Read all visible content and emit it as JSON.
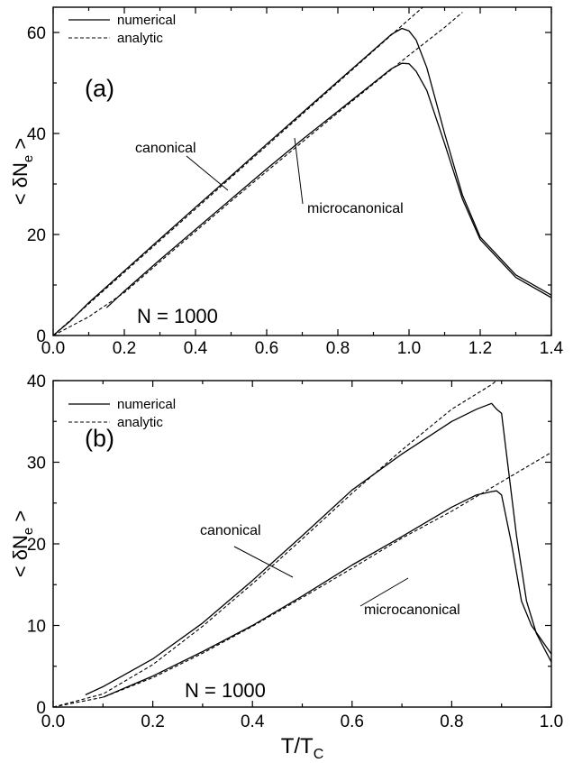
{
  "chart_data": [
    {
      "type": "line",
      "panel_label": "(a)",
      "annotation": "N = 1000",
      "ylabel": "< δN_e >",
      "xlim": [
        0.0,
        1.4
      ],
      "ylim": [
        0,
        65
      ],
      "xticks": [
        "0.0",
        "0.2",
        "0.4",
        "0.6",
        "0.8",
        "1.0",
        "1.2",
        "1.4"
      ],
      "yticks": [
        "0",
        "20",
        "40",
        "60"
      ],
      "legend": {
        "position": "top-left",
        "entries": [
          "numerical",
          "analytic"
        ]
      },
      "labels": [
        "canonical",
        "microcanonical"
      ],
      "series": [
        {
          "name": "canonical (numerical)",
          "style": "solid",
          "x": [
            0.0,
            0.05,
            0.1,
            0.2,
            0.3,
            0.4,
            0.5,
            0.6,
            0.7,
            0.8,
            0.9,
            0.95,
            0.98,
            1.0,
            1.02,
            1.05,
            1.1,
            1.15,
            1.2,
            1.3,
            1.4
          ],
          "y": [
            0,
            3,
            6.5,
            12.8,
            19.1,
            25.4,
            31.6,
            37.9,
            44.1,
            50.3,
            56.5,
            59.6,
            60.8,
            60.3,
            58.5,
            53,
            40,
            27.8,
            19.5,
            12,
            8
          ]
        },
        {
          "name": "canonical (analytic)",
          "style": "dashed",
          "x": [
            0.0,
            1.0,
            1.12
          ],
          "y": [
            0,
            62.6,
            70
          ]
        },
        {
          "name": "microcanonical (numerical)",
          "style": "solid",
          "x": [
            0.15,
            0.2,
            0.3,
            0.4,
            0.5,
            0.6,
            0.7,
            0.8,
            0.9,
            0.95,
            0.98,
            1.0,
            1.02,
            1.05,
            1.1,
            1.15,
            1.2,
            1.3,
            1.4
          ],
          "y": [
            5.5,
            8.8,
            15,
            21,
            27,
            33,
            38.8,
            44.4,
            50,
            52.8,
            53.9,
            53.8,
            52.3,
            48.5,
            38,
            27,
            19,
            11.5,
            7.5
          ]
        },
        {
          "name": "microcanonical (analytic)",
          "style": "dashed",
          "x": [
            0.0,
            0.1,
            0.2,
            0.3,
            0.4,
            0.5,
            0.6,
            0.7,
            0.8,
            0.9,
            1.0,
            1.1,
            1.15
          ],
          "y": [
            0,
            3.7,
            8.5,
            14.6,
            20.6,
            26.6,
            32.5,
            38.3,
            44.1,
            49.8,
            55.5,
            61,
            64
          ]
        }
      ]
    },
    {
      "type": "line",
      "panel_label": "(b)",
      "annotation": "N = 1000",
      "ylabel": "< δN_e >",
      "xlabel": "T/T_C",
      "xlim": [
        0.0,
        1.0
      ],
      "ylim": [
        0,
        40
      ],
      "xticks": [
        "0.0",
        "0.2",
        "0.4",
        "0.6",
        "0.8",
        "1.0"
      ],
      "yticks": [
        "0",
        "10",
        "20",
        "30",
        "40"
      ],
      "legend": {
        "position": "top-left",
        "entries": [
          "numerical",
          "analytic"
        ]
      },
      "labels": [
        "canonical",
        "microcanonical"
      ],
      "series": [
        {
          "name": "canonical (numerical)",
          "style": "solid",
          "x": [
            0.065,
            0.1,
            0.2,
            0.3,
            0.4,
            0.5,
            0.6,
            0.7,
            0.8,
            0.85,
            0.88,
            0.89,
            0.9,
            0.91,
            0.93,
            0.95,
            0.97,
            1.0
          ],
          "y": [
            1.5,
            2.5,
            5.9,
            10.3,
            15.5,
            21,
            26.6,
            31,
            35,
            36.5,
            37.2,
            36.5,
            36,
            31,
            21,
            13,
            9,
            5.5
          ]
        },
        {
          "name": "canonical (analytic)",
          "style": "dashed",
          "x": [
            0.0,
            0.1,
            0.2,
            0.3,
            0.4,
            0.5,
            0.6,
            0.7,
            0.8,
            0.88,
            0.92
          ],
          "y": [
            0,
            1.6,
            5.2,
            9.9,
            15.1,
            20.6,
            26.2,
            31.5,
            36.5,
            39.5,
            41.5
          ]
        },
        {
          "name": "microcanonical (numerical)",
          "style": "solid",
          "x": [
            0.1,
            0.2,
            0.3,
            0.4,
            0.5,
            0.6,
            0.7,
            0.8,
            0.85,
            0.88,
            0.89,
            0.9,
            0.92,
            0.94,
            0.96,
            1.0
          ],
          "y": [
            1.2,
            3.8,
            6.8,
            10,
            13.6,
            17.4,
            20.9,
            24.5,
            26,
            26.4,
            26.5,
            26,
            20,
            13,
            10,
            6.5
          ]
        },
        {
          "name": "microcanonical (analytic)",
          "style": "dashed",
          "x": [
            0.0,
            0.1,
            0.2,
            0.3,
            0.4,
            0.5,
            0.6,
            0.7,
            0.8,
            0.9,
            1.0
          ],
          "y": [
            0,
            1.2,
            3.6,
            6.6,
            9.9,
            13.4,
            17,
            20.7,
            24,
            27.6,
            31.2
          ]
        }
      ]
    }
  ]
}
